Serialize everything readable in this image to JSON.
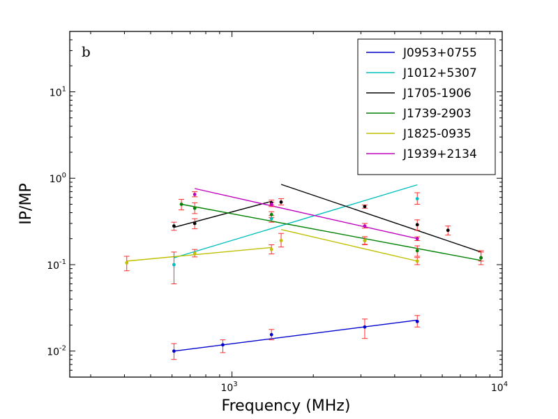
{
  "chart_data": {
    "type": "scatter",
    "panel_label": "b",
    "xlabel": "Frequency (MHz)",
    "ylabel": "IP/MP",
    "xscale": "log",
    "yscale": "log",
    "xlim": [
      251,
      10000
    ],
    "ylim": [
      0.005,
      50
    ],
    "x_ticks": [
      {
        "base": "10",
        "exp": "3",
        "value": 1000
      },
      {
        "base": "10",
        "exp": "4",
        "value": 10000
      }
    ],
    "y_ticks": [
      {
        "base": "10",
        "exp": "-2",
        "value": 0.01
      },
      {
        "base": "10",
        "exp": "-1",
        "value": 0.1
      },
      {
        "base": "10",
        "exp": "0",
        "value": 1
      },
      {
        "base": "10",
        "exp": "1",
        "value": 10
      }
    ],
    "error_bar_color": "#ff2b2b",
    "legend_position": "top-right",
    "series": [
      {
        "name": "J0953+0755",
        "color": "#0000cc",
        "points": [
          {
            "x": 610,
            "y": 0.01,
            "lo": 0.008,
            "hi": 0.0122
          },
          {
            "x": 925,
            "y": 0.0118,
            "lo": 0.0096,
            "hi": 0.0135
          },
          {
            "x": 1400,
            "y": 0.0155,
            "lo": 0.0135,
            "hi": 0.0178
          },
          {
            "x": 3100,
            "y": 0.019,
            "lo": 0.014,
            "hi": 0.0235
          },
          {
            "x": 4850,
            "y": 0.022,
            "lo": 0.019,
            "hi": 0.0258
          }
        ],
        "fit": [
          [
            610,
            0.01
          ],
          [
            4850,
            0.0228
          ]
        ]
      },
      {
        "name": "J1012+5307",
        "color": "#00bfbf",
        "points": [
          {
            "x": 610,
            "y": 0.1,
            "lo": 0.06,
            "hi": 0.14
          },
          {
            "x": 1400,
            "y": 0.34,
            "lo": 0.31,
            "hi": 0.37
          },
          {
            "x": 4850,
            "y": 0.58,
            "lo": 0.5,
            "hi": 0.68
          }
        ],
        "fit": [
          [
            610,
            0.12
          ],
          [
            4850,
            0.84
          ]
        ]
      },
      {
        "name": "J1705-1906",
        "color": "#000000",
        "points": [
          {
            "x": 610,
            "y": 0.28,
            "lo": 0.25,
            "hi": 0.31
          },
          {
            "x": 728,
            "y": 0.3,
            "lo": 0.26,
            "hi": 0.34
          },
          {
            "x": 1400,
            "y": 0.52,
            "lo": 0.49,
            "hi": 0.56
          },
          {
            "x": 1520,
            "y": 0.53,
            "lo": 0.49,
            "hi": 0.58
          },
          {
            "x": 3100,
            "y": 0.47,
            "lo": 0.45,
            "hi": 0.49
          },
          {
            "x": 4850,
            "y": 0.29,
            "lo": 0.25,
            "hi": 0.33
          },
          {
            "x": 6300,
            "y": 0.25,
            "lo": 0.22,
            "hi": 0.28
          },
          {
            "x": 8350,
            "y": 0.12,
            "lo": 0.11,
            "hi": 0.14
          }
        ],
        "fit": [
          [
            610,
            0.27
          ],
          [
            1400,
            0.54
          ]
        ],
        "fit2": [
          [
            1520,
            0.85
          ],
          [
            8350,
            0.14
          ]
        ]
      },
      {
        "name": "J1739-2903",
        "color": "#008000",
        "points": [
          {
            "x": 650,
            "y": 0.5,
            "lo": 0.43,
            "hi": 0.57
          },
          {
            "x": 728,
            "y": 0.45,
            "lo": 0.39,
            "hi": 0.52
          },
          {
            "x": 1400,
            "y": 0.38,
            "lo": 0.35,
            "hi": 0.41
          },
          {
            "x": 3100,
            "y": 0.19,
            "lo": 0.17,
            "hi": 0.21
          },
          {
            "x": 4850,
            "y": 0.145,
            "lo": 0.125,
            "hi": 0.165
          },
          {
            "x": 8350,
            "y": 0.12,
            "lo": 0.1,
            "hi": 0.145
          }
        ],
        "fit": [
          [
            650,
            0.5
          ],
          [
            8350,
            0.112
          ]
        ]
      },
      {
        "name": "J1825-0935",
        "color": "#bfbf00",
        "points": [
          {
            "x": 408,
            "y": 0.105,
            "lo": 0.085,
            "hi": 0.125
          },
          {
            "x": 728,
            "y": 0.135,
            "lo": 0.123,
            "hi": 0.15
          },
          {
            "x": 1400,
            "y": 0.15,
            "lo": 0.133,
            "hi": 0.17
          },
          {
            "x": 1520,
            "y": 0.19,
            "lo": 0.16,
            "hi": 0.23
          },
          {
            "x": 3100,
            "y": 0.19,
            "lo": 0.172,
            "hi": 0.21
          },
          {
            "x": 4850,
            "y": 0.11,
            "lo": 0.1,
            "hi": 0.121
          }
        ],
        "fit": [
          [
            408,
            0.11
          ],
          [
            1400,
            0.158
          ]
        ],
        "fit2": [
          [
            1520,
            0.255
          ],
          [
            4850,
            0.11
          ]
        ]
      },
      {
        "name": "J1939+2134",
        "color": "#bf00bf",
        "points": [
          {
            "x": 728,
            "y": 0.65,
            "lo": 0.61,
            "hi": 0.7
          },
          {
            "x": 1400,
            "y": 0.5,
            "lo": 0.47,
            "hi": 0.53
          },
          {
            "x": 3100,
            "y": 0.28,
            "lo": 0.265,
            "hi": 0.3
          },
          {
            "x": 4850,
            "y": 0.2,
            "lo": 0.19,
            "hi": 0.21
          }
        ],
        "fit": [
          [
            728,
            0.76
          ],
          [
            4850,
            0.2
          ]
        ]
      }
    ]
  }
}
